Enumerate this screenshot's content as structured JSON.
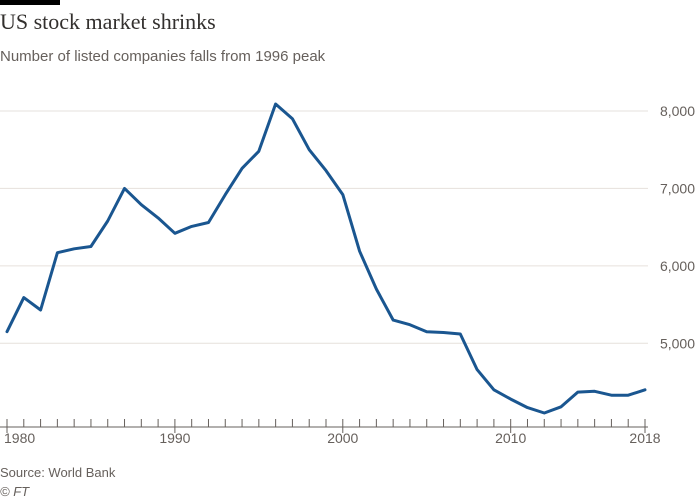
{
  "header": {
    "title": "US stock market shrinks",
    "subtitle": "Number of listed companies falls from 1996 peak"
  },
  "footer": {
    "source": "Source: World Bank",
    "copyright": "© FT"
  },
  "colors": {
    "line": "#1a5690",
    "grid": "#e6e1dc",
    "axis": "#66605c",
    "text": "#33302e"
  },
  "chart_data": {
    "type": "line",
    "title": "US stock market shrinks",
    "subtitle": "Number of listed companies falls from 1996 peak",
    "xlabel": "",
    "ylabel": "",
    "xlim": [
      1980,
      2018
    ],
    "ylim": [
      4100,
      8200
    ],
    "x_ticks": [
      {
        "value": 1980,
        "label": "1980"
      },
      {
        "value": 1990,
        "label": "1990"
      },
      {
        "value": 2000,
        "label": "2000"
      },
      {
        "value": 2010,
        "label": "2010"
      },
      {
        "value": 2018,
        "label": "2018"
      }
    ],
    "y_ticks": [
      {
        "value": 5000,
        "label": "5,000"
      },
      {
        "value": 6000,
        "label": "6,000"
      },
      {
        "value": 7000,
        "label": "7,000"
      },
      {
        "value": 8000,
        "label": "8,000"
      }
    ],
    "grid": true,
    "legend": "none",
    "series": [
      {
        "name": "Number of listed companies",
        "x": [
          1980,
          1981,
          1982,
          1983,
          1984,
          1985,
          1986,
          1987,
          1988,
          1989,
          1990,
          1991,
          1992,
          1993,
          1994,
          1995,
          1996,
          1997,
          1998,
          1999,
          2000,
          2001,
          2002,
          2003,
          2004,
          2005,
          2006,
          2007,
          2008,
          2009,
          2010,
          2011,
          2012,
          2013,
          2014,
          2015,
          2016,
          2017,
          2018
        ],
        "values": [
          5150,
          5590,
          5430,
          6170,
          6220,
          6250,
          6580,
          7000,
          6790,
          6620,
          6420,
          6510,
          6560,
          6920,
          7260,
          7480,
          8090,
          7900,
          7500,
          7230,
          6920,
          6190,
          5700,
          5300,
          5240,
          5150,
          5140,
          5120,
          4660,
          4400,
          4280,
          4170,
          4100,
          4180,
          4370,
          4380,
          4330,
          4330,
          4400
        ]
      }
    ]
  }
}
